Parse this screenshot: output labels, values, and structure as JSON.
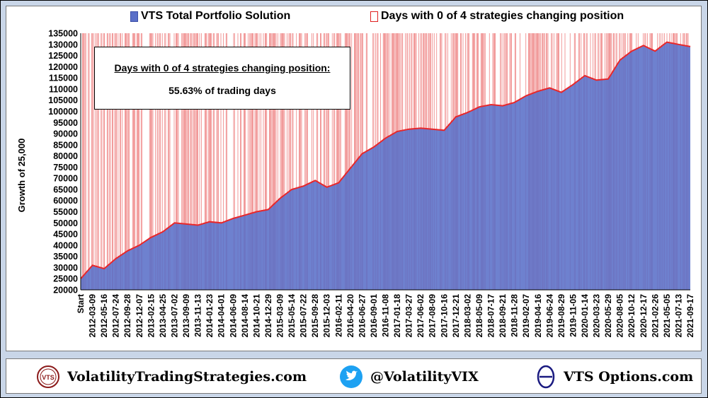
{
  "legend": {
    "portfolio": "VTS Total Portfolio Solution",
    "days": "Days with 0 of 4 strategies changing position"
  },
  "annotation": {
    "title": "Days with 0 of 4 strategies changing position:",
    "value": "55.63% of trading days"
  },
  "footer": {
    "site": "VolatilityTradingStrategies.com",
    "vts_logo": "VTS",
    "twitter": "@VolatilityVIX",
    "options": "VTS Options.com"
  },
  "colors": {
    "portfolio_fill": "#5a6fc8",
    "portfolio_line": "#e8272a",
    "day_bar": "#e02020",
    "background": "#c9d6e8"
  },
  "chart_data": {
    "type": "area",
    "title": "",
    "ylabel": "Growth of 25,000",
    "xlabel": "",
    "ylim": [
      20000,
      135000
    ],
    "yticks": [
      20000,
      25000,
      30000,
      35000,
      40000,
      45000,
      50000,
      55000,
      60000,
      65000,
      70000,
      75000,
      80000,
      85000,
      90000,
      95000,
      100000,
      105000,
      110000,
      115000,
      120000,
      125000,
      130000,
      135000
    ],
    "categories": [
      "Start",
      "2012-03-09",
      "2012-05-16",
      "2012-07-24",
      "2012-09-28",
      "2012-12-07",
      "2013-02-15",
      "2013-04-25",
      "2013-07-02",
      "2013-09-09",
      "2013-11-13",
      "2014-01-23",
      "2014-04-01",
      "2014-06-09",
      "2014-08-14",
      "2014-10-21",
      "2014-12-29",
      "2015-03-09",
      "2015-05-14",
      "2015-07-22",
      "2015-09-28",
      "2015-12-03",
      "2016-02-11",
      "2016-04-20",
      "2016-06-27",
      "2016-09-01",
      "2016-11-08",
      "2017-01-18",
      "2017-03-27",
      "2017-06-02",
      "2017-08-09",
      "2017-10-16",
      "2017-12-21",
      "2018-03-02",
      "2018-05-09",
      "2018-07-17",
      "2018-09-21",
      "2018-11-28",
      "2019-02-07",
      "2019-04-16",
      "2019-06-24",
      "2019-08-29",
      "2019-11-05",
      "2020-01-14",
      "2020-03-23",
      "2020-05-29",
      "2020-08-05",
      "2020-10-12",
      "2020-12-17",
      "2021-02-26",
      "2021-05-05",
      "2021-07-13",
      "2021-09-17"
    ],
    "series": [
      {
        "name": "VTS Total Portfolio Solution",
        "values": [
          25000,
          31000,
          29500,
          34000,
          37500,
          40000,
          43500,
          46000,
          50000,
          49500,
          49000,
          50500,
          50000,
          52000,
          53500,
          55000,
          56000,
          61000,
          65000,
          66500,
          69000,
          66000,
          68000,
          74500,
          81000,
          84000,
          88000,
          91000,
          92000,
          92500,
          92000,
          91500,
          97500,
          99500,
          102000,
          103000,
          102500,
          104000,
          107000,
          109000,
          110500,
          108500,
          112000,
          116000,
          114000,
          114500,
          123000,
          127000,
          129500,
          127000,
          131000,
          130000,
          129000
        ]
      }
    ],
    "days_series": {
      "name": "Days with 0 of 4 strategies changing position",
      "share_of_trading_days": 0.5563
    },
    "grid": false,
    "legend_position": "top"
  }
}
